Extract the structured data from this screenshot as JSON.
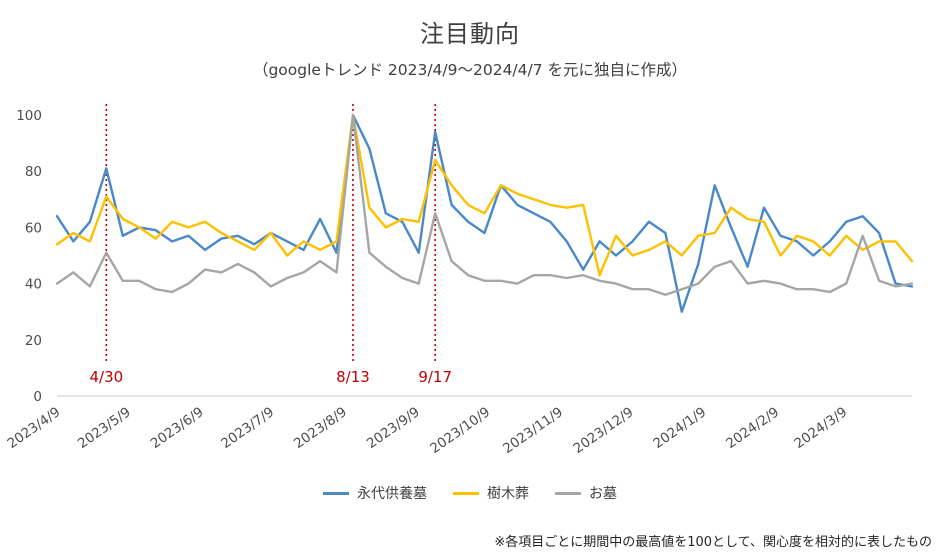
{
  "title": "注目動向",
  "subtitle": "（googleトレンド 2023/4/9～2024/4/7 を元に独自に作成）",
  "footnote": "※各項目ごとに期間中の最高値を100として、関心度を相対的に表したもの",
  "chart_data": {
    "type": "line",
    "title": "注目動向",
    "subtitle": "（googleトレンド 2023/4/9～2024/4/7 を元に独自に作成）",
    "x_unit": "week",
    "x_start": "2023/4/9",
    "x_end": "2024/4/7",
    "total_days": 364,
    "ylim": [
      0,
      100
    ],
    "yticks": [
      0,
      20,
      40,
      60,
      80,
      100
    ],
    "grid": false,
    "legend_position": "bottom",
    "x_ticks": [
      {
        "label": "2023/4/9",
        "day": 0
      },
      {
        "label": "2023/5/9",
        "day": 30
      },
      {
        "label": "2023/6/9",
        "day": 61
      },
      {
        "label": "2023/7/9",
        "day": 91
      },
      {
        "label": "2023/8/9",
        "day": 122
      },
      {
        "label": "2023/9/9",
        "day": 153
      },
      {
        "label": "2023/10/9",
        "day": 183
      },
      {
        "label": "2023/11/9",
        "day": 214
      },
      {
        "label": "2023/12/9",
        "day": 244
      },
      {
        "label": "2024/1/9",
        "day": 275
      },
      {
        "label": "2024/2/9",
        "day": 306
      },
      {
        "label": "2024/3/9",
        "day": 335
      }
    ],
    "annotations": [
      {
        "label": "4/30",
        "day": 21,
        "color": "#c00000"
      },
      {
        "label": "8/13",
        "day": 126,
        "color": "#c00000"
      },
      {
        "label": "9/17",
        "day": 161,
        "color": "#c00000"
      }
    ],
    "series": [
      {
        "name": "永代供養墓",
        "color": "#4a89c8",
        "values": [
          64,
          55,
          62,
          81,
          57,
          60,
          59,
          55,
          57,
          52,
          56,
          57,
          54,
          58,
          55,
          52,
          63,
          51,
          100,
          88,
          65,
          62,
          51,
          94,
          68,
          62,
          58,
          75,
          68,
          65,
          62,
          55,
          45,
          55,
          50,
          55,
          62,
          58,
          30,
          47,
          75,
          60,
          46,
          67,
          57,
          55,
          50,
          55,
          62,
          64,
          58,
          40,
          39
        ]
      },
      {
        "name": "樹木葬",
        "color": "#ffc000",
        "values": [
          54,
          58,
          55,
          71,
          63,
          60,
          56,
          62,
          60,
          62,
          58,
          55,
          52,
          58,
          50,
          55,
          52,
          55,
          100,
          67,
          60,
          63,
          62,
          84,
          75,
          68,
          65,
          75,
          72,
          70,
          68,
          67,
          68,
          43,
          57,
          50,
          52,
          55,
          50,
          57,
          58,
          67,
          63,
          62,
          50,
          57,
          55,
          50,
          57,
          52,
          55,
          55,
          48
        ]
      },
      {
        "name": "お墓",
        "color": "#a6a6a6",
        "values": [
          40,
          44,
          39,
          51,
          41,
          41,
          38,
          37,
          40,
          45,
          44,
          47,
          44,
          39,
          42,
          44,
          48,
          44,
          100,
          51,
          46,
          42,
          40,
          65,
          48,
          43,
          41,
          41,
          40,
          43,
          43,
          42,
          43,
          41,
          40,
          38,
          38,
          36,
          38,
          40,
          46,
          48,
          40,
          41,
          40,
          38,
          38,
          37,
          40,
          57,
          41,
          39,
          40
        ]
      }
    ]
  }
}
